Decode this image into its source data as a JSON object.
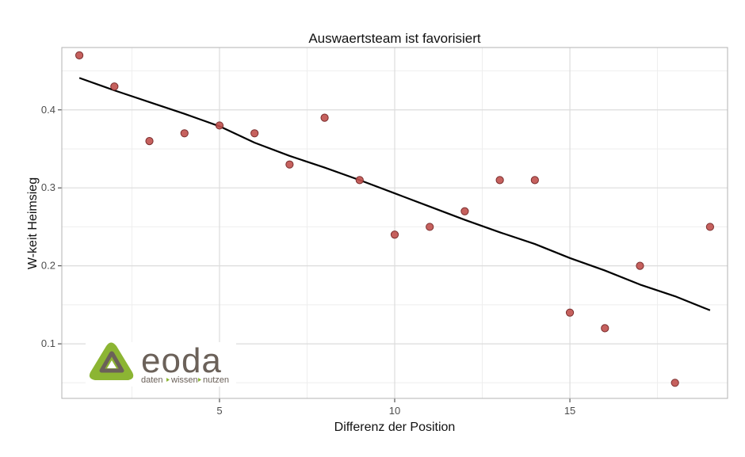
{
  "chart_data": {
    "type": "scatter",
    "title": "Auswaertsteam ist favorisiert",
    "xlabel": "Differenz der Position",
    "ylabel": "W-keit Heimsieg",
    "xlim": [
      0.5,
      19.5
    ],
    "ylim": [
      0.03,
      0.48
    ],
    "x_ticks": [
      5,
      10,
      15
    ],
    "x_tick_labels": [
      "5",
      "10",
      "15"
    ],
    "y_ticks": [
      0.1,
      0.2,
      0.3,
      0.4
    ],
    "y_tick_labels": [
      "0.1",
      "0.2",
      "0.3",
      "0.4"
    ],
    "grid": true,
    "points": [
      {
        "x": 1,
        "y": 0.47
      },
      {
        "x": 2,
        "y": 0.43
      },
      {
        "x": 3,
        "y": 0.36
      },
      {
        "x": 4,
        "y": 0.37
      },
      {
        "x": 5,
        "y": 0.38
      },
      {
        "x": 6,
        "y": 0.37
      },
      {
        "x": 7,
        "y": 0.33
      },
      {
        "x": 8,
        "y": 0.39
      },
      {
        "x": 9,
        "y": 0.31
      },
      {
        "x": 10,
        "y": 0.24
      },
      {
        "x": 11,
        "y": 0.25
      },
      {
        "x": 12,
        "y": 0.27
      },
      {
        "x": 13,
        "y": 0.31
      },
      {
        "x": 14,
        "y": 0.31
      },
      {
        "x": 15,
        "y": 0.14
      },
      {
        "x": 16,
        "y": 0.12
      },
      {
        "x": 17,
        "y": 0.2
      },
      {
        "x": 18,
        "y": 0.05
      },
      {
        "x": 19,
        "y": 0.25
      }
    ],
    "trend_line": {
      "x": [
        1,
        2,
        3,
        4,
        5,
        6,
        7,
        8,
        9,
        10,
        11,
        12,
        13,
        14,
        15,
        16,
        17,
        18,
        19
      ],
      "y": [
        0.441,
        0.425,
        0.41,
        0.395,
        0.379,
        0.358,
        0.341,
        0.326,
        0.31,
        0.293,
        0.276,
        0.259,
        0.243,
        0.228,
        0.21,
        0.194,
        0.176,
        0.161,
        0.143
      ]
    },
    "point_color": "#c0504d",
    "point_stroke": "#7a2e2e",
    "line_color": "#000000",
    "panel_border_color": "#b3b3b3",
    "grid_major_color": "#dcdcdc",
    "grid_minor_color": "#eeeeee"
  },
  "logo": {
    "name": "eoda",
    "tagline_parts": [
      "daten",
      "wissen",
      "nutzen"
    ],
    "colors": {
      "green": "#8cb533",
      "brown": "#6b6159"
    }
  }
}
